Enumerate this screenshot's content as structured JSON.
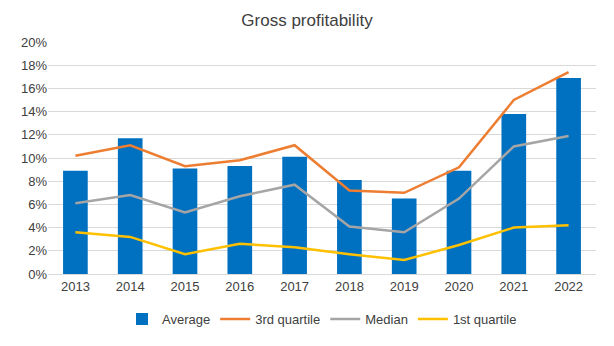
{
  "chart_data": {
    "type": "bar",
    "title": "Gross profitability",
    "categories": [
      "2013",
      "2014",
      "2015",
      "2016",
      "2017",
      "2018",
      "2019",
      "2020",
      "2021",
      "2022"
    ],
    "series": [
      {
        "name": "Average",
        "type": "bar",
        "color": "#0070c0",
        "values": [
          8.9,
          11.7,
          9.1,
          9.3,
          10.1,
          8.1,
          6.5,
          8.9,
          13.8,
          16.9
        ]
      },
      {
        "name": "3rd quartile",
        "type": "line",
        "color": "#ed7d31",
        "values": [
          10.2,
          11.1,
          9.3,
          9.8,
          11.1,
          7.2,
          7.0,
          9.2,
          15.0,
          17.4
        ]
      },
      {
        "name": "Median",
        "type": "line",
        "color": "#a5a5a5",
        "values": [
          6.1,
          6.8,
          5.3,
          6.7,
          7.7,
          4.1,
          3.6,
          6.5,
          11.0,
          11.9
        ]
      },
      {
        "name": "1st quartile",
        "type": "line",
        "color": "#ffc000",
        "values": [
          3.6,
          3.2,
          1.7,
          2.6,
          2.3,
          1.7,
          1.2,
          2.5,
          4.0,
          4.2
        ]
      }
    ],
    "ylim": [
      0,
      20
    ],
    "yticks": [
      {
        "value": 0,
        "label": "0%"
      },
      {
        "value": 2,
        "label": "2%"
      },
      {
        "value": 4,
        "label": "4%"
      },
      {
        "value": 6,
        "label": "6%"
      },
      {
        "value": 8,
        "label": "8%"
      },
      {
        "value": 10,
        "label": "10%"
      },
      {
        "value": 12,
        "label": "12%"
      },
      {
        "value": 14,
        "label": "14%"
      },
      {
        "value": 16,
        "label": "16%"
      },
      {
        "value": 18,
        "label": "18%"
      },
      {
        "value": 20,
        "label": "20%"
      }
    ],
    "grid": true,
    "legend": "bottom"
  }
}
